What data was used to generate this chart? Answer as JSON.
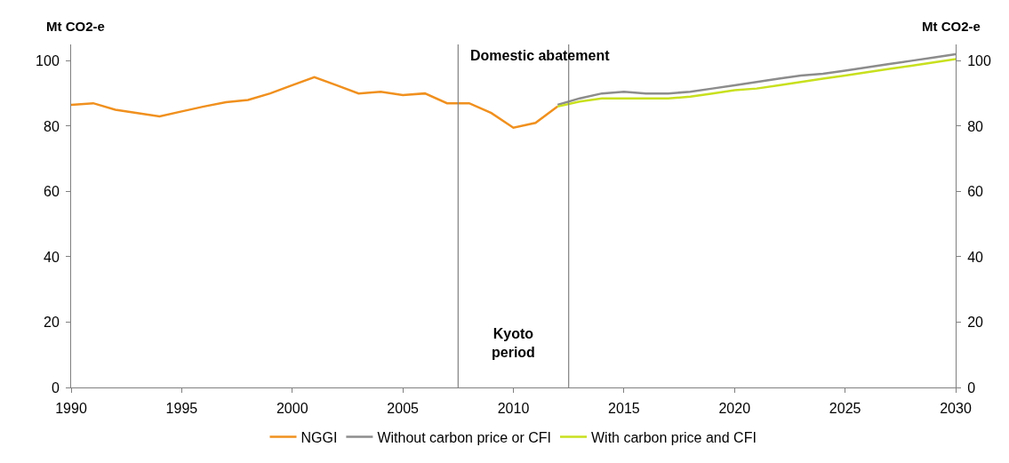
{
  "chart_data": {
    "type": "line",
    "ylabel": "Mt CO2-e",
    "y2label": "Mt CO2-e",
    "xlim": [
      1990,
      2030
    ],
    "xticks": [
      1990,
      1995,
      2000,
      2005,
      2010,
      2015,
      2020,
      2025,
      2030
    ],
    "ylim": [
      0,
      105
    ],
    "yticks": [
      0,
      20,
      40,
      60,
      80,
      100
    ],
    "y2lim": [
      0,
      105
    ],
    "y2ticks": [
      0,
      20,
      40,
      60,
      80,
      100
    ],
    "legend": "bottom",
    "marker": "none",
    "line_style": "solid",
    "ref_lines": [
      {
        "axis": "x",
        "value": 2007.5,
        "color": "#808080"
      },
      {
        "axis": "x",
        "value": 2012.5,
        "color": "#808080"
      }
    ],
    "annotations": [
      "Kyoto period",
      "Domestic abatement"
    ],
    "series": [
      {
        "name": "NGGI",
        "color": "#f0901e",
        "x": [
          1990,
          1991,
          1992,
          1993,
          1994,
          1995,
          1996,
          1997,
          1998,
          1999,
          2000,
          2001,
          2002,
          2003,
          2004,
          2005,
          2006,
          2007,
          2008,
          2009,
          2010,
          2011,
          2012
        ],
        "values": [
          86.5,
          87,
          85,
          84,
          83,
          84.5,
          86,
          87.3,
          88,
          90,
          92.5,
          95,
          92.5,
          90,
          90.5,
          89.5,
          90,
          87,
          87,
          84,
          79.5,
          81,
          86
        ]
      },
      {
        "name": "Without carbon price or CFI",
        "color": "#8c8c8c",
        "x": [
          2012,
          2013,
          2014,
          2015,
          2016,
          2017,
          2018,
          2019,
          2020,
          2021,
          2022,
          2023,
          2024,
          2025,
          2026,
          2027,
          2028,
          2029,
          2030
        ],
        "values": [
          86.5,
          88.5,
          90,
          90.5,
          90,
          90,
          90.5,
          91.5,
          92.5,
          93.5,
          94.5,
          95.5,
          96,
          97,
          98,
          99,
          100,
          101,
          102
        ]
      },
      {
        "name": "With carbon price and CFI",
        "color": "#c8e01e",
        "x": [
          2012,
          2013,
          2014,
          2015,
          2016,
          2017,
          2018,
          2019,
          2020,
          2021,
          2022,
          2023,
          2024,
          2025,
          2026,
          2027,
          2028,
          2029,
          2030
        ],
        "values": [
          86,
          87.5,
          88.5,
          88.5,
          88.5,
          88.5,
          89,
          90,
          91,
          91.5,
          92.5,
          93.5,
          94.5,
          95.5,
          96.5,
          97.5,
          98.5,
          99.5,
          100.5
        ]
      }
    ]
  }
}
